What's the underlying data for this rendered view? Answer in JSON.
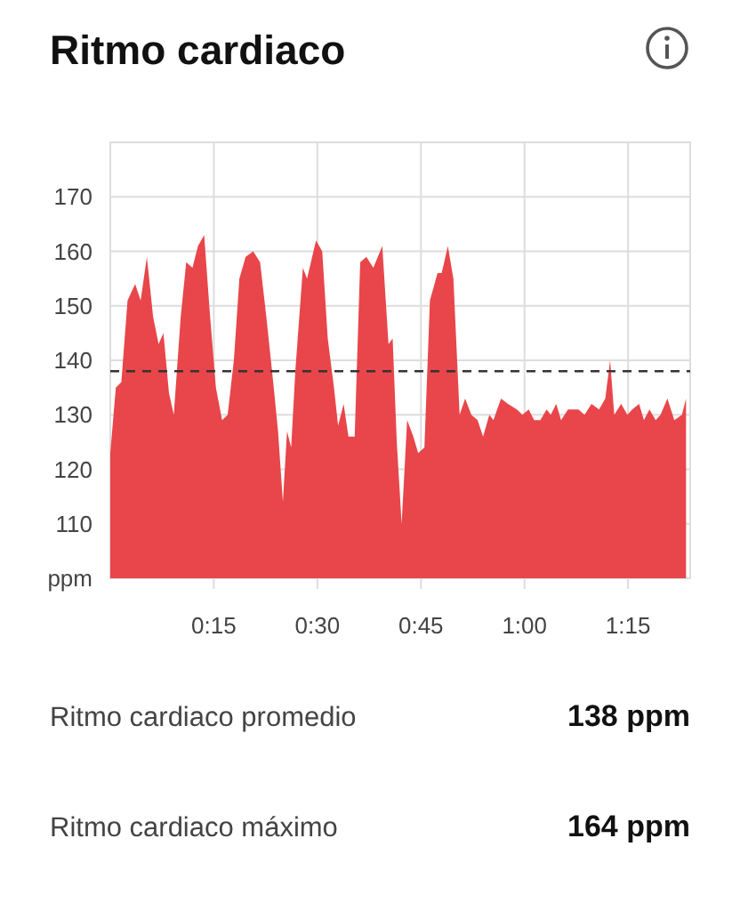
{
  "chart_data": {
    "type": "area",
    "title": "Ritmo cardiaco",
    "x": [
      0,
      0.8,
      1.6,
      2.5,
      3.6,
      4.4,
      5.3,
      6.2,
      7.0,
      7.7,
      8.5,
      9.2,
      10.2,
      11.0,
      11.9,
      12.7,
      13.6,
      14.4,
      15.3,
      16.2,
      17.0,
      17.9,
      18.7,
      19.6,
      20.7,
      21.7,
      22.6,
      23.6,
      24.3,
      25.0,
      25.6,
      26.2,
      26.8,
      27.9,
      28.5,
      29.8,
      30.7,
      31.5,
      32.4,
      33.0,
      33.8,
      34.5,
      35.4,
      36.2,
      37.1,
      38.1,
      39.4,
      40.3,
      40.9,
      41.5,
      42.2,
      43.0,
      43.9,
      44.6,
      45.5,
      46.3,
      47.4,
      48.0,
      48.9,
      49.7,
      50.6,
      51.4,
      52.3,
      53.2,
      54.0,
      54.9,
      55.5,
      56.6,
      57.6,
      58.9,
      59.7,
      60.6,
      61.4,
      62.3,
      63.2,
      63.8,
      64.6,
      65.3,
      66.3,
      67.8,
      68.7,
      69.7,
      70.8,
      71.7,
      72.4,
      73.0,
      74.0,
      74.9,
      75.6,
      76.6,
      77.3,
      78.1,
      79.0,
      79.7,
      80.7,
      81.7,
      82.8,
      83.4
    ],
    "series": [
      {
        "color": "#e8464a",
        "values": [
          123,
          135,
          136,
          151,
          154,
          151,
          159,
          148,
          143,
          145,
          134,
          130,
          148,
          158,
          157,
          161,
          163,
          149,
          135,
          129,
          130,
          140,
          155,
          159,
          160,
          158,
          148,
          136,
          127,
          114,
          127,
          124,
          138,
          157,
          155,
          162,
          160,
          144,
          135,
          128,
          132,
          126,
          126,
          158,
          159,
          157,
          161,
          143,
          144,
          125,
          110,
          129,
          126,
          123,
          124,
          151,
          156,
          156,
          161,
          155,
          130,
          133,
          130,
          129,
          126,
          130,
          129,
          133,
          132,
          131,
          130,
          131,
          129,
          129,
          131,
          130,
          132,
          129,
          131,
          131,
          130,
          132,
          131,
          133,
          140,
          130,
          132,
          130,
          131,
          132,
          129,
          131,
          129,
          130,
          133,
          129,
          130,
          133
        ]
      }
    ],
    "xlim": [
      0,
      84
    ],
    "xticks": [
      {
        "value": 15,
        "label": "0:15"
      },
      {
        "value": 30,
        "label": "0:30"
      },
      {
        "value": 45,
        "label": "0:45"
      },
      {
        "value": 60,
        "label": "1:00"
      },
      {
        "value": 75,
        "label": "1:15"
      }
    ],
    "ylim": [
      100,
      180
    ],
    "yticks": [
      {
        "value": 100,
        "label": "ppm"
      },
      110,
      120,
      130,
      140,
      150,
      160,
      170
    ],
    "grid": true,
    "ref_lines": [
      {
        "axis": "y",
        "value": 138,
        "color": "#333333",
        "line_style": "dashed"
      }
    ],
    "annotations": [
      "Ritmo cardiaco promedio",
      "138 ppm",
      "Ritmo cardiaco máximo",
      "164 ppm"
    ]
  }
}
